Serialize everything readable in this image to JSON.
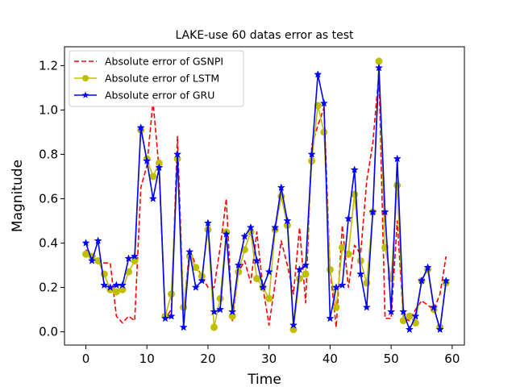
{
  "chart_data": {
    "type": "line",
    "title": "LAKE-use 60 datas error as test",
    "xlabel": "Time",
    "ylabel": "Magnitude",
    "xlim": [
      -3.5,
      62
    ],
    "ylim": [
      -0.06,
      1.285
    ],
    "xticks": [
      0,
      10,
      20,
      30,
      40,
      50,
      60
    ],
    "yticks": [
      0.0,
      0.2,
      0.4,
      0.6,
      0.8,
      1.0,
      1.2
    ],
    "xtick_labels": [
      "0",
      "10",
      "20",
      "30",
      "40",
      "50",
      "60"
    ],
    "ytick_labels": [
      "0.0",
      "0.2",
      "0.4",
      "0.6",
      "0.8",
      "1.0",
      "1.2"
    ],
    "grid": false,
    "legend_position": "top-left",
    "x": [
      0,
      1,
      2,
      3,
      4,
      5,
      6,
      7,
      8,
      9,
      10,
      11,
      12,
      13,
      14,
      15,
      16,
      17,
      18,
      19,
      20,
      21,
      22,
      23,
      24,
      25,
      26,
      27,
      28,
      29,
      30,
      31,
      32,
      33,
      34,
      35,
      36,
      37,
      38,
      39,
      40,
      41,
      42,
      43,
      44,
      45,
      46,
      47,
      48,
      49,
      50,
      51,
      52,
      53,
      54,
      55,
      56,
      57,
      58,
      59
    ],
    "series": [
      {
        "name": "Absolute error of GSNPI",
        "color": "#ff0000",
        "style": "dashed",
        "marker": "none",
        "values": [
          0.37,
          0.35,
          0.33,
          0.31,
          0.31,
          0.07,
          0.04,
          0.07,
          0.05,
          0.65,
          0.75,
          1.04,
          0.73,
          0.06,
          0.1,
          0.88,
          0.1,
          0.37,
          0.3,
          0.25,
          0.2,
          0.2,
          0.38,
          0.6,
          0.05,
          0.27,
          0.32,
          0.22,
          0.45,
          0.2,
          0.03,
          0.22,
          0.41,
          0.3,
          0.17,
          0.47,
          0.13,
          0.84,
          0.93,
          1.01,
          0.28,
          0.02,
          0.48,
          0.2,
          0.39,
          0.35,
          0.68,
          0.85,
          1.17,
          0.06,
          0.06,
          0.5,
          0.06,
          0.05,
          0.1,
          0.14,
          0.12,
          0.1,
          0.17,
          0.34
        ]
      },
      {
        "name": "Absolute error of LSTM",
        "color": "#bfbf00",
        "style": "solid",
        "marker": "circle",
        "values": [
          0.35,
          0.34,
          0.32,
          0.26,
          0.19,
          0.18,
          0.19,
          0.27,
          0.32,
          0.91,
          0.78,
          0.7,
          0.76,
          0.07,
          0.17,
          0.78,
          0.11,
          0.34,
          0.29,
          0.25,
          0.46,
          0.02,
          0.15,
          0.45,
          0.07,
          0.27,
          0.37,
          0.45,
          0.24,
          0.2,
          0.15,
          0.46,
          0.61,
          0.48,
          0.01,
          0.24,
          0.26,
          0.77,
          1.02,
          0.9,
          0.28,
          0.11,
          0.38,
          0.35,
          0.62,
          0.32,
          0.22,
          0.54,
          1.22,
          0.38,
          0.24,
          0.66,
          0.05,
          0.07,
          0.04,
          0.23,
          0.28,
          0.1,
          0.02,
          0.22
        ]
      },
      {
        "name": "Absolute error of GRU",
        "color": "#0000ff",
        "style": "solid",
        "marker": "star",
        "values": [
          0.4,
          0.32,
          0.41,
          0.21,
          0.2,
          0.21,
          0.21,
          0.33,
          0.34,
          0.92,
          0.77,
          0.6,
          0.74,
          0.06,
          0.07,
          0.8,
          0.02,
          0.36,
          0.2,
          0.23,
          0.49,
          0.09,
          0.1,
          0.44,
          0.09,
          0.3,
          0.43,
          0.47,
          0.32,
          0.2,
          0.27,
          0.47,
          0.65,
          0.5,
          0.03,
          0.28,
          0.3,
          0.8,
          1.16,
          1.03,
          0.06,
          0.2,
          0.21,
          0.51,
          0.73,
          0.26,
          0.11,
          0.54,
          1.19,
          0.54,
          0.09,
          0.78,
          0.09,
          0.01,
          0.07,
          0.23,
          0.29,
          0.11,
          0.01,
          0.23
        ]
      }
    ]
  }
}
